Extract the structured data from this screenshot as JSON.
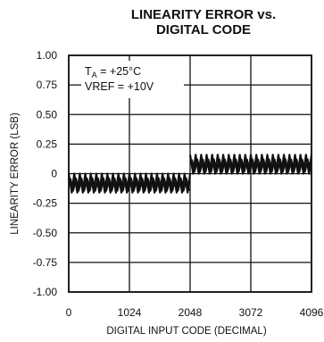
{
  "chart_data": {
    "type": "line",
    "title_line1": "LINEARITY ERROR vs.",
    "title_line2": "DIGITAL CODE",
    "xlabel": "DIGITAL INPUT CODE (DECIMAL)",
    "ylabel": "LINEARITY ERROR (LSB)",
    "xlim": [
      0,
      4096
    ],
    "ylim": [
      -1.0,
      1.0
    ],
    "x_ticks": [
      0,
      1024,
      2048,
      3072,
      4096
    ],
    "x_tick_labels": [
      "0",
      "1024",
      "2048",
      "3072",
      "4096"
    ],
    "y_ticks": [
      1.0,
      0.75,
      0.5,
      0.25,
      0,
      -0.25,
      -0.5,
      -0.75,
      -1.0
    ],
    "y_tick_labels": [
      "1.00",
      "0.75",
      "0.50",
      "0.25",
      "0",
      "-0.25",
      "-0.50",
      "-0.75",
      "-1.00"
    ],
    "grid": true,
    "annotation_line1_main": "T",
    "annotation_line1_sub": "A",
    "annotation_line1_rest": " = +25°C",
    "annotation_line2": "VREF = +10V",
    "series": [
      {
        "segments": [
          {
            "x_start": 0,
            "x_end": 2048,
            "upper": 0.0,
            "lower": -0.16,
            "cycles": 22
          },
          {
            "x_start": 2048,
            "x_end": 4096,
            "upper": 0.16,
            "lower": 0.0,
            "cycles": 22
          }
        ]
      }
    ]
  }
}
